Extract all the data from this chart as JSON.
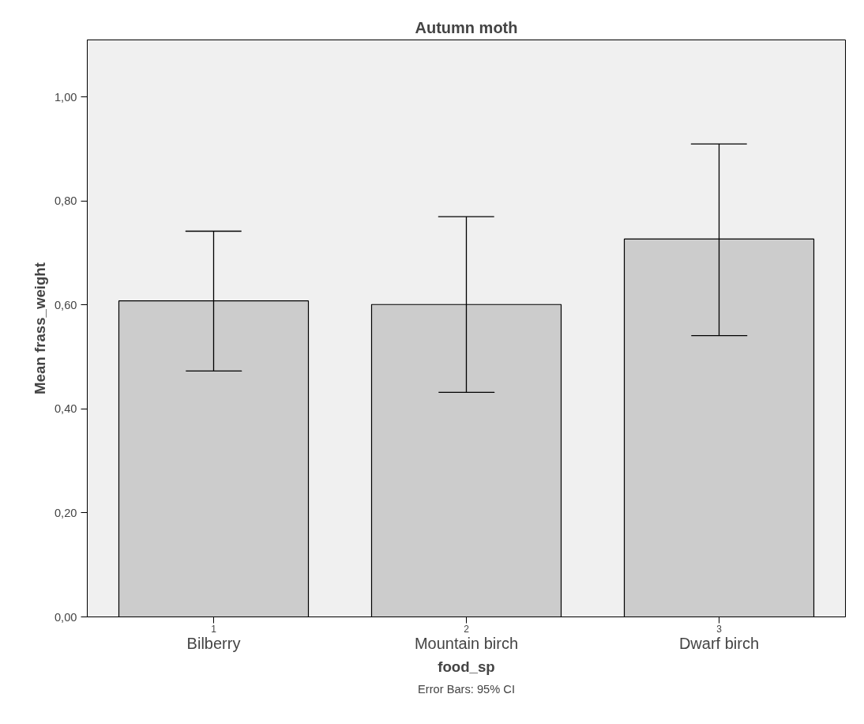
{
  "chart_data": {
    "type": "bar",
    "title": "Autumn moth",
    "xlabel": "food_sp",
    "ylabel": "Mean frass_weight",
    "categories": [
      "Bilberry",
      "Mountain birch",
      "Dwarf birch"
    ],
    "values": [
      0.608,
      0.601,
      0.727
    ],
    "errors": [
      [
        0.473,
        0.742
      ],
      [
        0.432,
        0.77
      ],
      [
        0.541,
        0.91
      ]
    ],
    "color": "#cccccc",
    "ylim": [
      0,
      1.11
    ],
    "yticks": [
      {
        "value": 0,
        "label": "0,00"
      },
      {
        "value": 0.2,
        "label": "0,20"
      },
      {
        "value": 0.4,
        "label": "0,40"
      },
      {
        "value": 0.6,
        "label": "0,60"
      },
      {
        "value": 0.8,
        "label": "0,80"
      },
      {
        "value": 1.0,
        "label": "1,00"
      }
    ],
    "grid": false,
    "annotations": [
      "1",
      "2",
      "3",
      "Error Bars: 95% CI"
    ]
  }
}
